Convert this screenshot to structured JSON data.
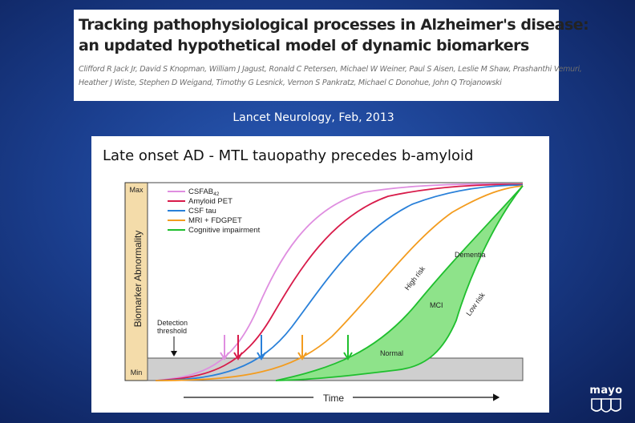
{
  "paper": {
    "title_line1": "Tracking pathophysiological processes in Alzheimer's disease:",
    "title_line2": "an updated hypothetical model of dynamic biomarkers",
    "authors_line1": "Clifford R Jack Jr, David S Knopman, William J Jagust, Ronald C Petersen, Michael W Weiner, Paul S Aisen, Leslie M Shaw, Prashanthi Vemuri,",
    "authors_line2": "Heather J Wiste, Stephen D Weigand, Timothy G Lesnick, Vernon S Pankratz, Michael C Donohue, John Q Trojanowski"
  },
  "journal": "Lancet Neurology, Feb, 2013",
  "figure": {
    "heading": "Late onset AD -  MTL tauopathy precedes b-amyloid",
    "y_max_label": "Max",
    "y_min_label": "Min",
    "y_axis_label": "Biomarker Abnormality",
    "x_axis_label": "Time",
    "detection_label_line1": "Detection",
    "detection_label_line2": "threshold",
    "legend": [
      {
        "label": "CSFAB",
        "sub": "42",
        "color": "#df8ee0"
      },
      {
        "label": "Amyloid PET",
        "sub": "",
        "color": "#d81b4a"
      },
      {
        "label": "CSF tau",
        "sub": "",
        "color": "#2980d9"
      },
      {
        "label": "MRI + FDGPET",
        "sub": "",
        "color": "#f39c1f"
      },
      {
        "label": "Cognitive impairment",
        "sub": "",
        "color": "#1fbf2e"
      }
    ],
    "annotations": {
      "dementia": "Dementia",
      "mci": "MCI",
      "normal": "Normal",
      "high_risk": "High risk",
      "low_risk": "Low risk"
    }
  },
  "logo": {
    "text": "mayo"
  }
}
